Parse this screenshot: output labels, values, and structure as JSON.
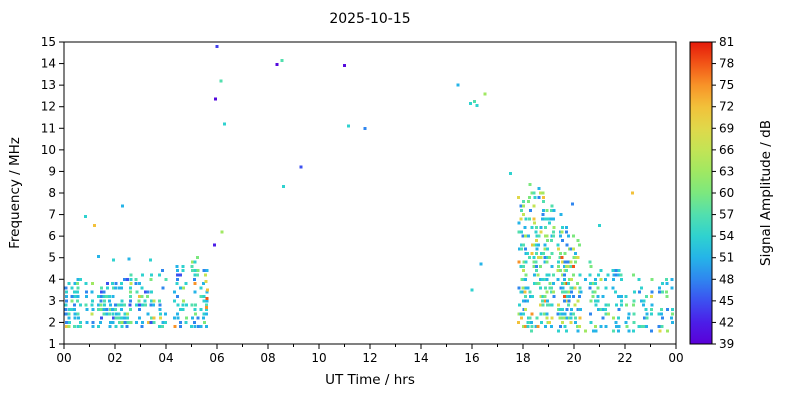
{
  "chart_data": {
    "type": "scatter",
    "title": "2025-10-15",
    "xlabel": "UT Time / hrs",
    "ylabel": "Frequency / MHz",
    "xlim": [
      0,
      24
    ],
    "ylim": [
      1,
      15
    ],
    "xticks": [
      0,
      2,
      4,
      6,
      8,
      10,
      12,
      14,
      16,
      18,
      20,
      22,
      24
    ],
    "xtick_labels": [
      "00",
      "02",
      "04",
      "06",
      "08",
      "10",
      "12",
      "14",
      "16",
      "18",
      "20",
      "22",
      "00"
    ],
    "yticks": [
      1,
      2,
      3,
      4,
      5,
      6,
      7,
      8,
      9,
      10,
      11,
      12,
      13,
      14,
      15
    ],
    "grid": false,
    "marker_size_px": 3,
    "colorbar": {
      "label": "Signal Amplitude / dB",
      "range": [
        39,
        81
      ],
      "ticks": [
        39,
        42,
        45,
        48,
        51,
        54,
        57,
        60,
        63,
        66,
        69,
        72,
        75,
        78,
        81
      ],
      "stops": [
        [
          39,
          "#5a00d8"
        ],
        [
          42,
          "#4b1ee8"
        ],
        [
          45,
          "#3c50f0"
        ],
        [
          48,
          "#2f86ef"
        ],
        [
          51,
          "#25b4e8"
        ],
        [
          54,
          "#2fd2cf"
        ],
        [
          57,
          "#52dfae"
        ],
        [
          60,
          "#7ce87e"
        ],
        [
          63,
          "#a0e862"
        ],
        [
          66,
          "#c3e455"
        ],
        [
          69,
          "#e0d84a"
        ],
        [
          72,
          "#f2c13a"
        ],
        [
          75,
          "#f89328"
        ],
        [
          78,
          "#f25517"
        ],
        [
          81,
          "#e51a0a"
        ]
      ]
    },
    "clusters": [
      {
        "name": "pre-dawn-low-band",
        "t_start": 0.08,
        "t_end": 5.7,
        "stripe_dt": 0.115,
        "skip_prob": 0.12,
        "f_min": 1.7,
        "f_max_profile": [
          [
            0.0,
            3.8
          ],
          [
            0.8,
            4.1
          ],
          [
            1.5,
            3.7
          ],
          [
            2.2,
            4.0
          ],
          [
            3.0,
            4.3
          ],
          [
            3.8,
            4.5
          ],
          [
            4.6,
            4.8
          ],
          [
            5.2,
            5.0
          ],
          [
            5.7,
            5.3
          ]
        ],
        "points_min": 4,
        "points_max": 13,
        "amp_weights": [
          [
            45,
            1
          ],
          [
            48,
            3
          ],
          [
            51,
            6
          ],
          [
            54,
            7
          ],
          [
            57,
            4
          ],
          [
            60,
            1.2
          ],
          [
            63,
            0.6
          ],
          [
            66,
            0.4
          ],
          [
            69,
            0.3
          ],
          [
            72,
            0.5
          ],
          [
            75,
            0.25
          ]
        ]
      },
      {
        "name": "evening-band",
        "t_start": 17.85,
        "t_end": 20.25,
        "stripe_dt": 0.085,
        "skip_prob": 0.08,
        "f_min": 1.6,
        "f_max_profile": [
          [
            17.85,
            7.8
          ],
          [
            18.2,
            8.4
          ],
          [
            18.7,
            8.3
          ],
          [
            19.2,
            7.6
          ],
          [
            19.7,
            6.6
          ],
          [
            20.25,
            5.6
          ]
        ],
        "points_min": 8,
        "points_max": 19,
        "amp_weights": [
          [
            48,
            3
          ],
          [
            51,
            5
          ],
          [
            54,
            6
          ],
          [
            57,
            5
          ],
          [
            60,
            3
          ],
          [
            63,
            2
          ],
          [
            66,
            1.5
          ],
          [
            69,
            1.2
          ],
          [
            72,
            1.5
          ],
          [
            75,
            0.8
          ],
          [
            78,
            0.3
          ]
        ]
      },
      {
        "name": "late-night-low-band",
        "t_start": 20.25,
        "t_end": 23.95,
        "stripe_dt": 0.1,
        "skip_prob": 0.25,
        "f_min": 1.5,
        "f_max_profile": [
          [
            20.25,
            5.2
          ],
          [
            21.0,
            4.6
          ],
          [
            22.0,
            4.3
          ],
          [
            23.0,
            4.1
          ],
          [
            23.95,
            3.9
          ]
        ],
        "points_min": 3,
        "points_max": 9,
        "amp_weights": [
          [
            48,
            3
          ],
          [
            51,
            5
          ],
          [
            54,
            6
          ],
          [
            57,
            4
          ],
          [
            60,
            2
          ],
          [
            63,
            1
          ],
          [
            66,
            0.6
          ],
          [
            69,
            0.4
          ],
          [
            72,
            0.6
          ]
        ]
      }
    ],
    "isolated_points": [
      [
        0.85,
        6.9,
        54
      ],
      [
        1.2,
        6.5,
        72
      ],
      [
        1.35,
        5.05,
        51
      ],
      [
        1.95,
        4.9,
        54
      ],
      [
        2.3,
        7.4,
        51
      ],
      [
        2.55,
        4.95,
        51
      ],
      [
        3.4,
        4.9,
        54
      ],
      [
        5.55,
        4.2,
        66
      ],
      [
        5.56,
        3.9,
        69
      ],
      [
        5.58,
        2.7,
        75
      ],
      [
        5.6,
        3.1,
        78
      ],
      [
        5.62,
        3.5,
        72
      ],
      [
        5.9,
        5.6,
        42
      ],
      [
        5.95,
        12.35,
        40
      ],
      [
        6.0,
        14.8,
        44
      ],
      [
        6.15,
        13.2,
        57
      ],
      [
        6.2,
        6.2,
        63
      ],
      [
        6.3,
        11.2,
        54
      ],
      [
        8.35,
        13.95,
        40
      ],
      [
        8.55,
        14.15,
        57
      ],
      [
        8.6,
        8.3,
        54
      ],
      [
        9.3,
        9.2,
        45
      ],
      [
        11.0,
        13.9,
        40
      ],
      [
        11.15,
        11.1,
        54
      ],
      [
        11.8,
        11.0,
        48
      ],
      [
        15.45,
        13.0,
        51
      ],
      [
        15.95,
        12.15,
        54
      ],
      [
        16.0,
        3.5,
        54
      ],
      [
        16.1,
        12.25,
        57
      ],
      [
        16.2,
        12.05,
        54
      ],
      [
        16.35,
        4.7,
        51
      ],
      [
        16.5,
        12.6,
        63
      ],
      [
        17.5,
        8.9,
        54
      ],
      [
        19.95,
        7.5,
        48
      ],
      [
        21.0,
        6.5,
        54
      ],
      [
        22.3,
        8.0,
        72
      ]
    ]
  }
}
